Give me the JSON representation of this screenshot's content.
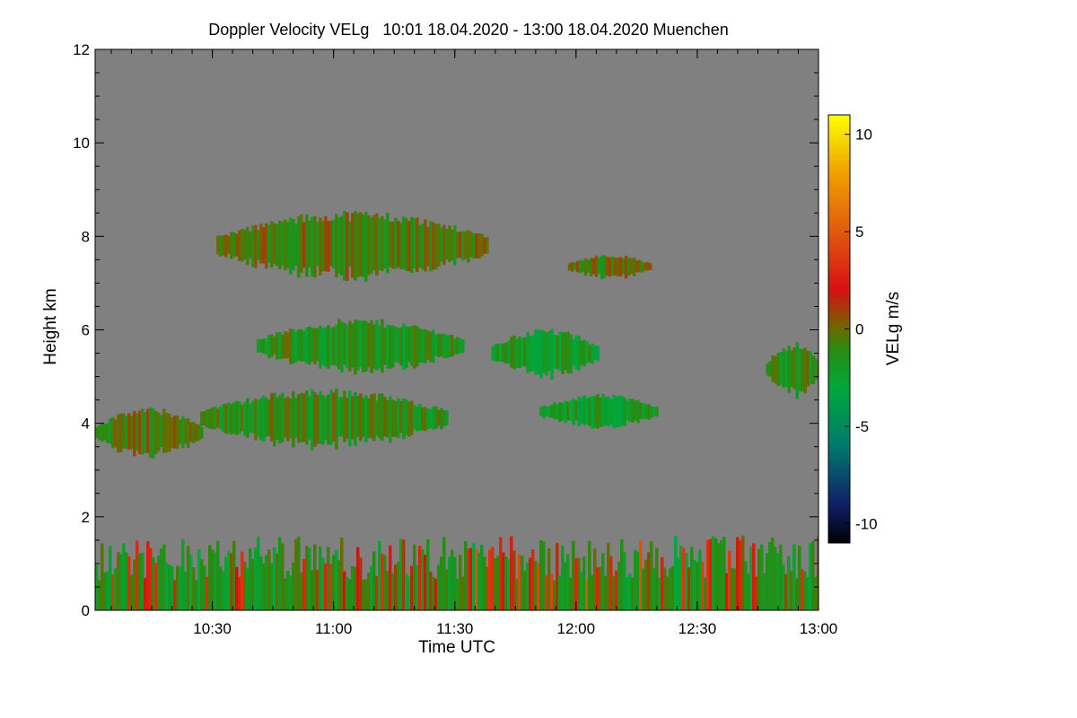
{
  "chart_data": {
    "type": "heatmap",
    "title": "Doppler Velocity VELg   10:01 18.04.2020 - 13:00 18.04.2020 Muenchen",
    "xlabel": "Time UTC",
    "ylabel": "Height km",
    "colorbar_label": "VELg m/s",
    "x_range_minutes_utc": [
      601,
      780
    ],
    "y_range_km": [
      0,
      12
    ],
    "c_range": [
      -11,
      11
    ],
    "x_ticks": [
      {
        "label": "10:30",
        "value": 630
      },
      {
        "label": "11:00",
        "value": 660
      },
      {
        "label": "11:30",
        "value": 690
      },
      {
        "label": "12:00",
        "value": 720
      },
      {
        "label": "12:30",
        "value": 750
      },
      {
        "label": "13:00",
        "value": 780
      }
    ],
    "y_ticks": [
      {
        "label": "0",
        "value": 0
      },
      {
        "label": "2",
        "value": 2
      },
      {
        "label": "4",
        "value": 4
      },
      {
        "label": "6",
        "value": 6
      },
      {
        "label": "8",
        "value": 8
      },
      {
        "label": "10",
        "value": 10
      },
      {
        "label": "12",
        "value": 12
      }
    ],
    "c_ticks": [
      {
        "label": "10",
        "value": 10
      },
      {
        "label": "5",
        "value": 5
      },
      {
        "label": "0",
        "value": 0
      },
      {
        "label": "-5",
        "value": -5
      },
      {
        "label": "-10",
        "value": -10
      }
    ],
    "colormap": [
      {
        "v": -11,
        "color": "#000000"
      },
      {
        "v": -9,
        "color": "#10206a"
      },
      {
        "v": -6,
        "color": "#007a6c"
      },
      {
        "v": -3,
        "color": "#00a83a"
      },
      {
        "v": -1,
        "color": "#2a8a10"
      },
      {
        "v": 0,
        "color": "#6a6a00"
      },
      {
        "v": 2,
        "color": "#d81010"
      },
      {
        "v": 5,
        "color": "#e05a10"
      },
      {
        "v": 8,
        "color": "#f0a000"
      },
      {
        "v": 11,
        "color": "#ffff00"
      }
    ],
    "background_color": "#808080",
    "echo_regions": [
      {
        "name": "boundary-layer",
        "t": [
          601,
          780
        ],
        "h": [
          0,
          1.6
        ],
        "v": -1.5
      },
      {
        "name": "low-cloud-1",
        "t": [
          601,
          627
        ],
        "h": [
          3.3,
          4.3
        ],
        "v": -0.5
      },
      {
        "name": "low-cloud-2",
        "t": [
          627,
          688
        ],
        "h": [
          3.5,
          4.7
        ],
        "v": -1.0
      },
      {
        "name": "mid-cloud-1",
        "t": [
          641,
          692
        ],
        "h": [
          5.1,
          6.2
        ],
        "v": -1.5
      },
      {
        "name": "mid-cloud-2",
        "t": [
          699,
          725
        ],
        "h": [
          5.0,
          6.0
        ],
        "v": -2.0
      },
      {
        "name": "mid-cloud-3",
        "t": [
          711,
          740
        ],
        "h": [
          3.9,
          4.6
        ],
        "v": -2.0
      },
      {
        "name": "mid-cloud-4",
        "t": [
          767,
          780
        ],
        "h": [
          4.6,
          5.7
        ],
        "v": -1.0
      },
      {
        "name": "upper-cloud-1",
        "t": [
          631,
          698
        ],
        "h": [
          7.1,
          8.5
        ],
        "v": -0.5
      },
      {
        "name": "upper-cloud-2",
        "t": [
          718,
          738
        ],
        "h": [
          7.1,
          7.6
        ],
        "v": -0.5
      }
    ]
  }
}
